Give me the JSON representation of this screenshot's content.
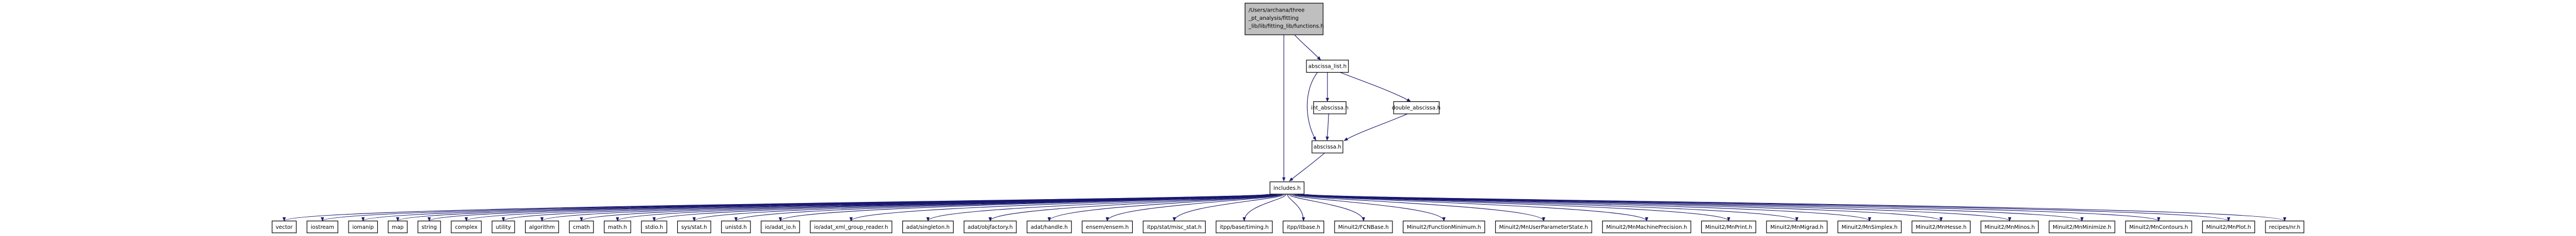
{
  "colors": {
    "edge": "#191970",
    "root_fill": "#bfbfbf",
    "node_fill": "#ffffff",
    "border": "#000000"
  },
  "root": {
    "label_lines": [
      "/Users/archana/three",
      "_pt_analysis/fitting",
      "_lib/lib/fitting_lib/functions.h"
    ]
  },
  "intermediate": {
    "abscissa_list": "abscissa_list.h",
    "int_abscissa": "int_abscissa.h",
    "double_abscissa": "double_abscissa.h",
    "abscissa": "abscissa.h",
    "includes": "includes.h"
  },
  "leaves": [
    "vector",
    "iostream",
    "iomanip",
    "map",
    "string",
    "complex",
    "utility",
    "algorithm",
    "cmath",
    "math.h",
    "stdio.h",
    "sys/stat.h",
    "unistd.h",
    "io/adat_io.h",
    "io/adat_xml_group_reader.h",
    "adat/singleton.h",
    "adat/objfactory.h",
    "adat/handle.h",
    "ensem/ensem.h",
    "itpp/stat/misc_stat.h",
    "itpp/base/timing.h",
    "itpp/itbase.h",
    "Minuit2/FCNBase.h",
    "Minuit2/FunctionMinimum.h",
    "Minuit2/MnUserParameterState.h",
    "Minuit2/MnMachinePrecision.h",
    "Minuit2/MnPrint.h",
    "Minuit2/MnMigrad.h",
    "Minuit2/MnSimplex.h",
    "Minuit2/MnHesse.h",
    "Minuit2/MnMinos.h",
    "Minuit2/MnMinimize.h",
    "Minuit2/MnContours.h",
    "Minuit2/MnPlot.h",
    "recipes/nr.h"
  ]
}
